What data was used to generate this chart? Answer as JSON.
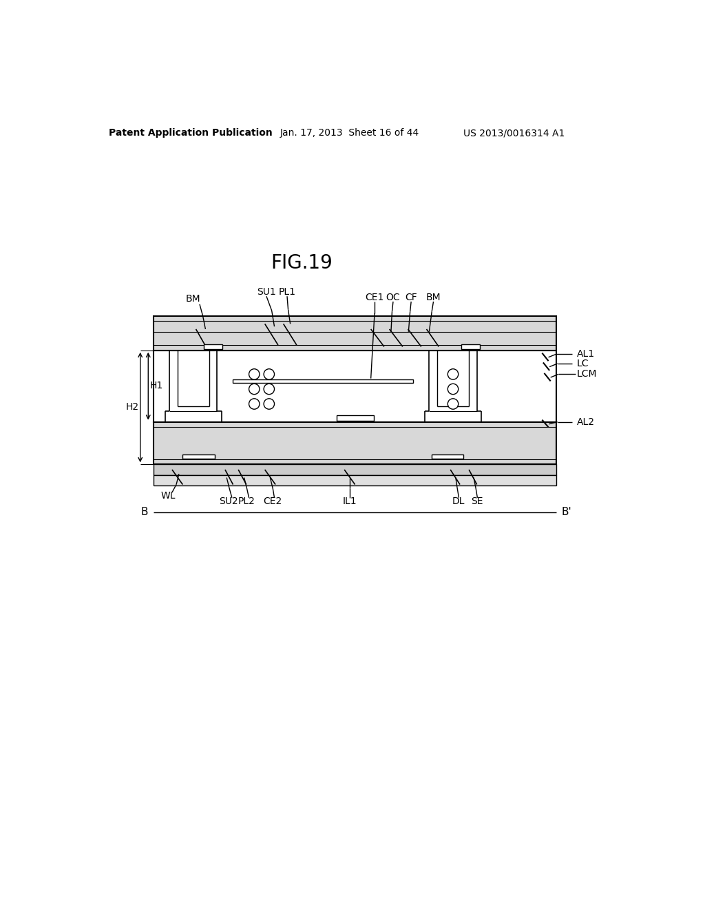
{
  "title": "FIG.19",
  "header_left": "Patent Application Publication",
  "header_mid": "Jan. 17, 2013  Sheet 16 of 44",
  "header_right": "US 2013/0016314 A1",
  "bg_color": "#ffffff"
}
